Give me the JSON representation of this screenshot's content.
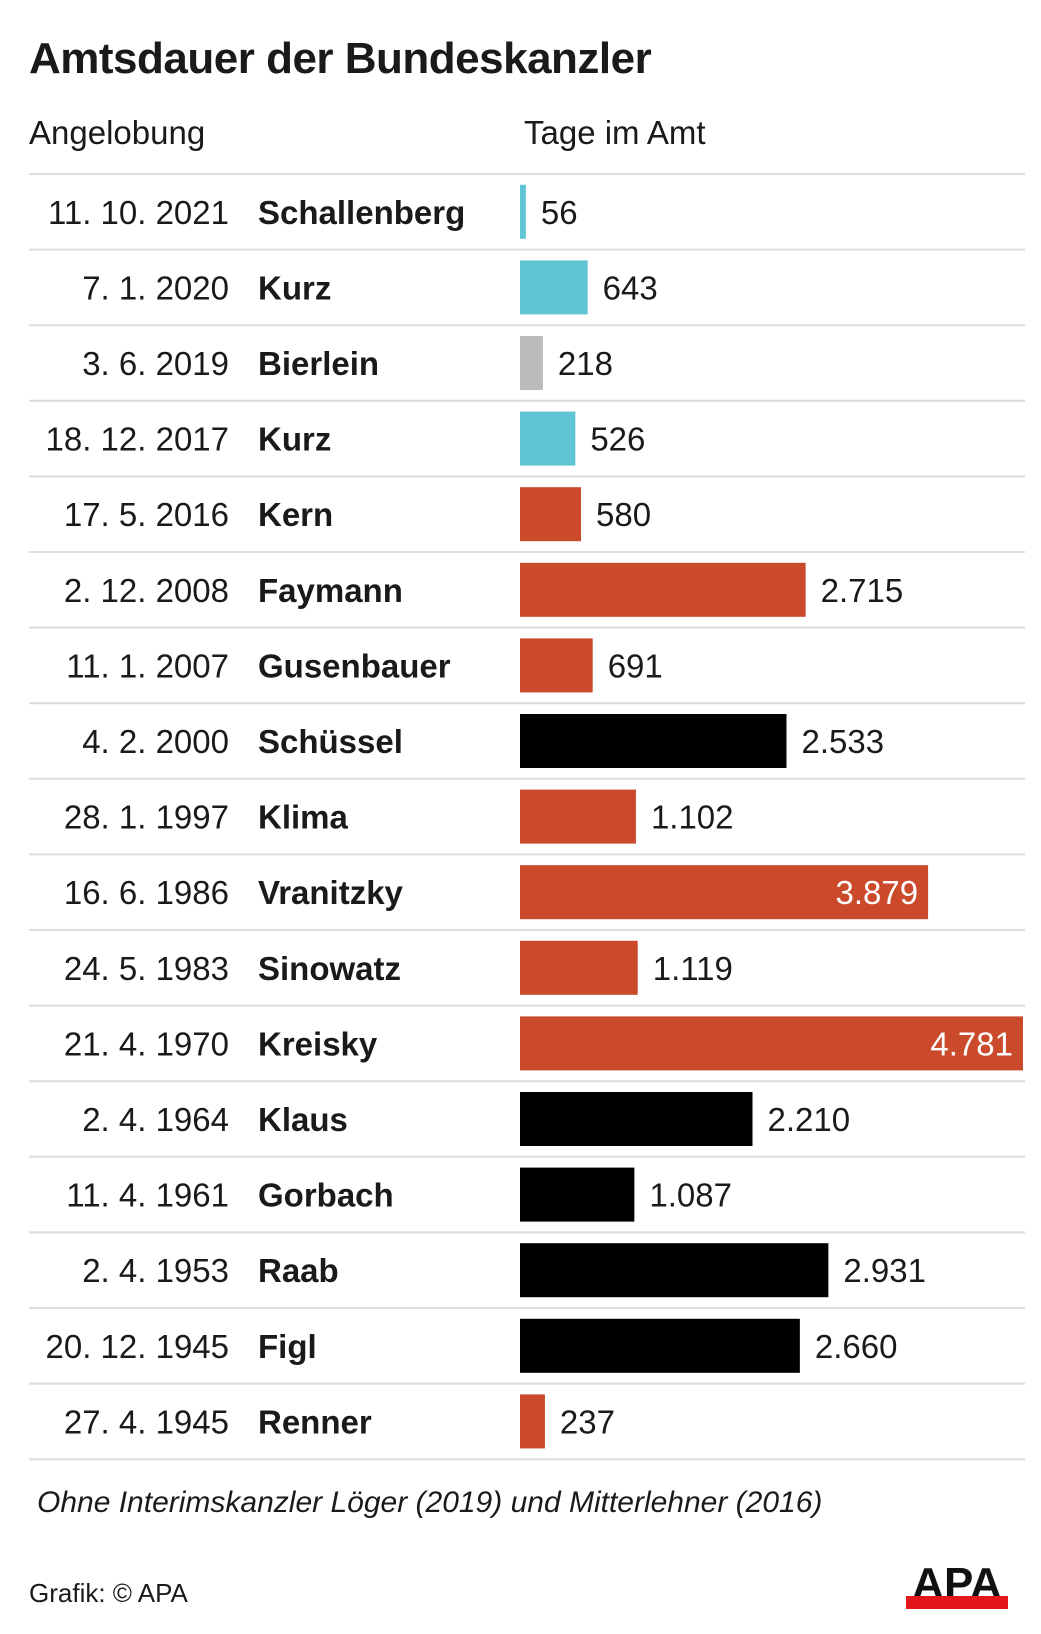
{
  "chart_data": {
    "type": "bar",
    "orientation": "horizontal",
    "title": "Amtsdauer der Bundeskanzler",
    "column_headers": {
      "date": "Angelobung",
      "value": "Tage im Amt"
    },
    "rows": [
      {
        "date": "11. 10. 2021",
        "name": "Schallenberg",
        "days": 56,
        "label": "56",
        "color": "#5fc4d3"
      },
      {
        "date": "7. 1. 2020",
        "name": "Kurz",
        "days": 643,
        "label": "643",
        "color": "#5fc4d3"
      },
      {
        "date": "3. 6. 2019",
        "name": "Bierlein",
        "days": 218,
        "label": "218",
        "color": "#bbbcbe"
      },
      {
        "date": "18. 12. 2017",
        "name": "Kurz",
        "days": 526,
        "label": "526",
        "color": "#5fc4d3"
      },
      {
        "date": "17. 5. 2016",
        "name": "Kern",
        "days": 580,
        "label": "580",
        "color": "#cc4a2c"
      },
      {
        "date": "2. 12. 2008",
        "name": "Faymann",
        "days": 2715,
        "label": "2.715",
        "color": "#cc4a2c"
      },
      {
        "date": "11. 1. 2007",
        "name": "Gusenbauer",
        "days": 691,
        "label": "691",
        "color": "#cc4a2c"
      },
      {
        "date": "4. 2. 2000",
        "name": "Schüssel",
        "days": 2533,
        "label": "2.533",
        "color": "#000000"
      },
      {
        "date": "28. 1. 1997",
        "name": "Klima",
        "days": 1102,
        "label": "1.102",
        "color": "#cc4a2c"
      },
      {
        "date": "16. 6. 1986",
        "name": "Vranitzky",
        "days": 3879,
        "label": "3.879",
        "color": "#cc4a2c"
      },
      {
        "date": "24. 5. 1983",
        "name": "Sinowatz",
        "days": 1119,
        "label": "1.119",
        "color": "#cc4a2c"
      },
      {
        "date": "21. 4. 1970",
        "name": "Kreisky",
        "days": 4781,
        "label": "4.781",
        "color": "#cc4a2c"
      },
      {
        "date": "2. 4. 1964",
        "name": "Klaus",
        "days": 2210,
        "label": "2.210",
        "color": "#000000"
      },
      {
        "date": "11. 4. 1961",
        "name": "Gorbach",
        "days": 1087,
        "label": "1.087",
        "color": "#000000"
      },
      {
        "date": "2. 4. 1953",
        "name": "Raab",
        "days": 2931,
        "label": "2.931",
        "color": "#000000"
      },
      {
        "date": "20. 12. 1945",
        "name": "Figl",
        "days": 2660,
        "label": "2.660",
        "color": "#000000"
      },
      {
        "date": "27. 4. 1945",
        "name": "Renner",
        "days": 237,
        "label": "237",
        "color": "#cc4a2c"
      }
    ],
    "xlim": [
      0,
      4781
    ],
    "grid": false,
    "footnote": "Ohne Interimskanzler Löger (2019) und Mitterlehner (2016)"
  },
  "credit": "Grafik: © APA",
  "logo_text": "APA"
}
